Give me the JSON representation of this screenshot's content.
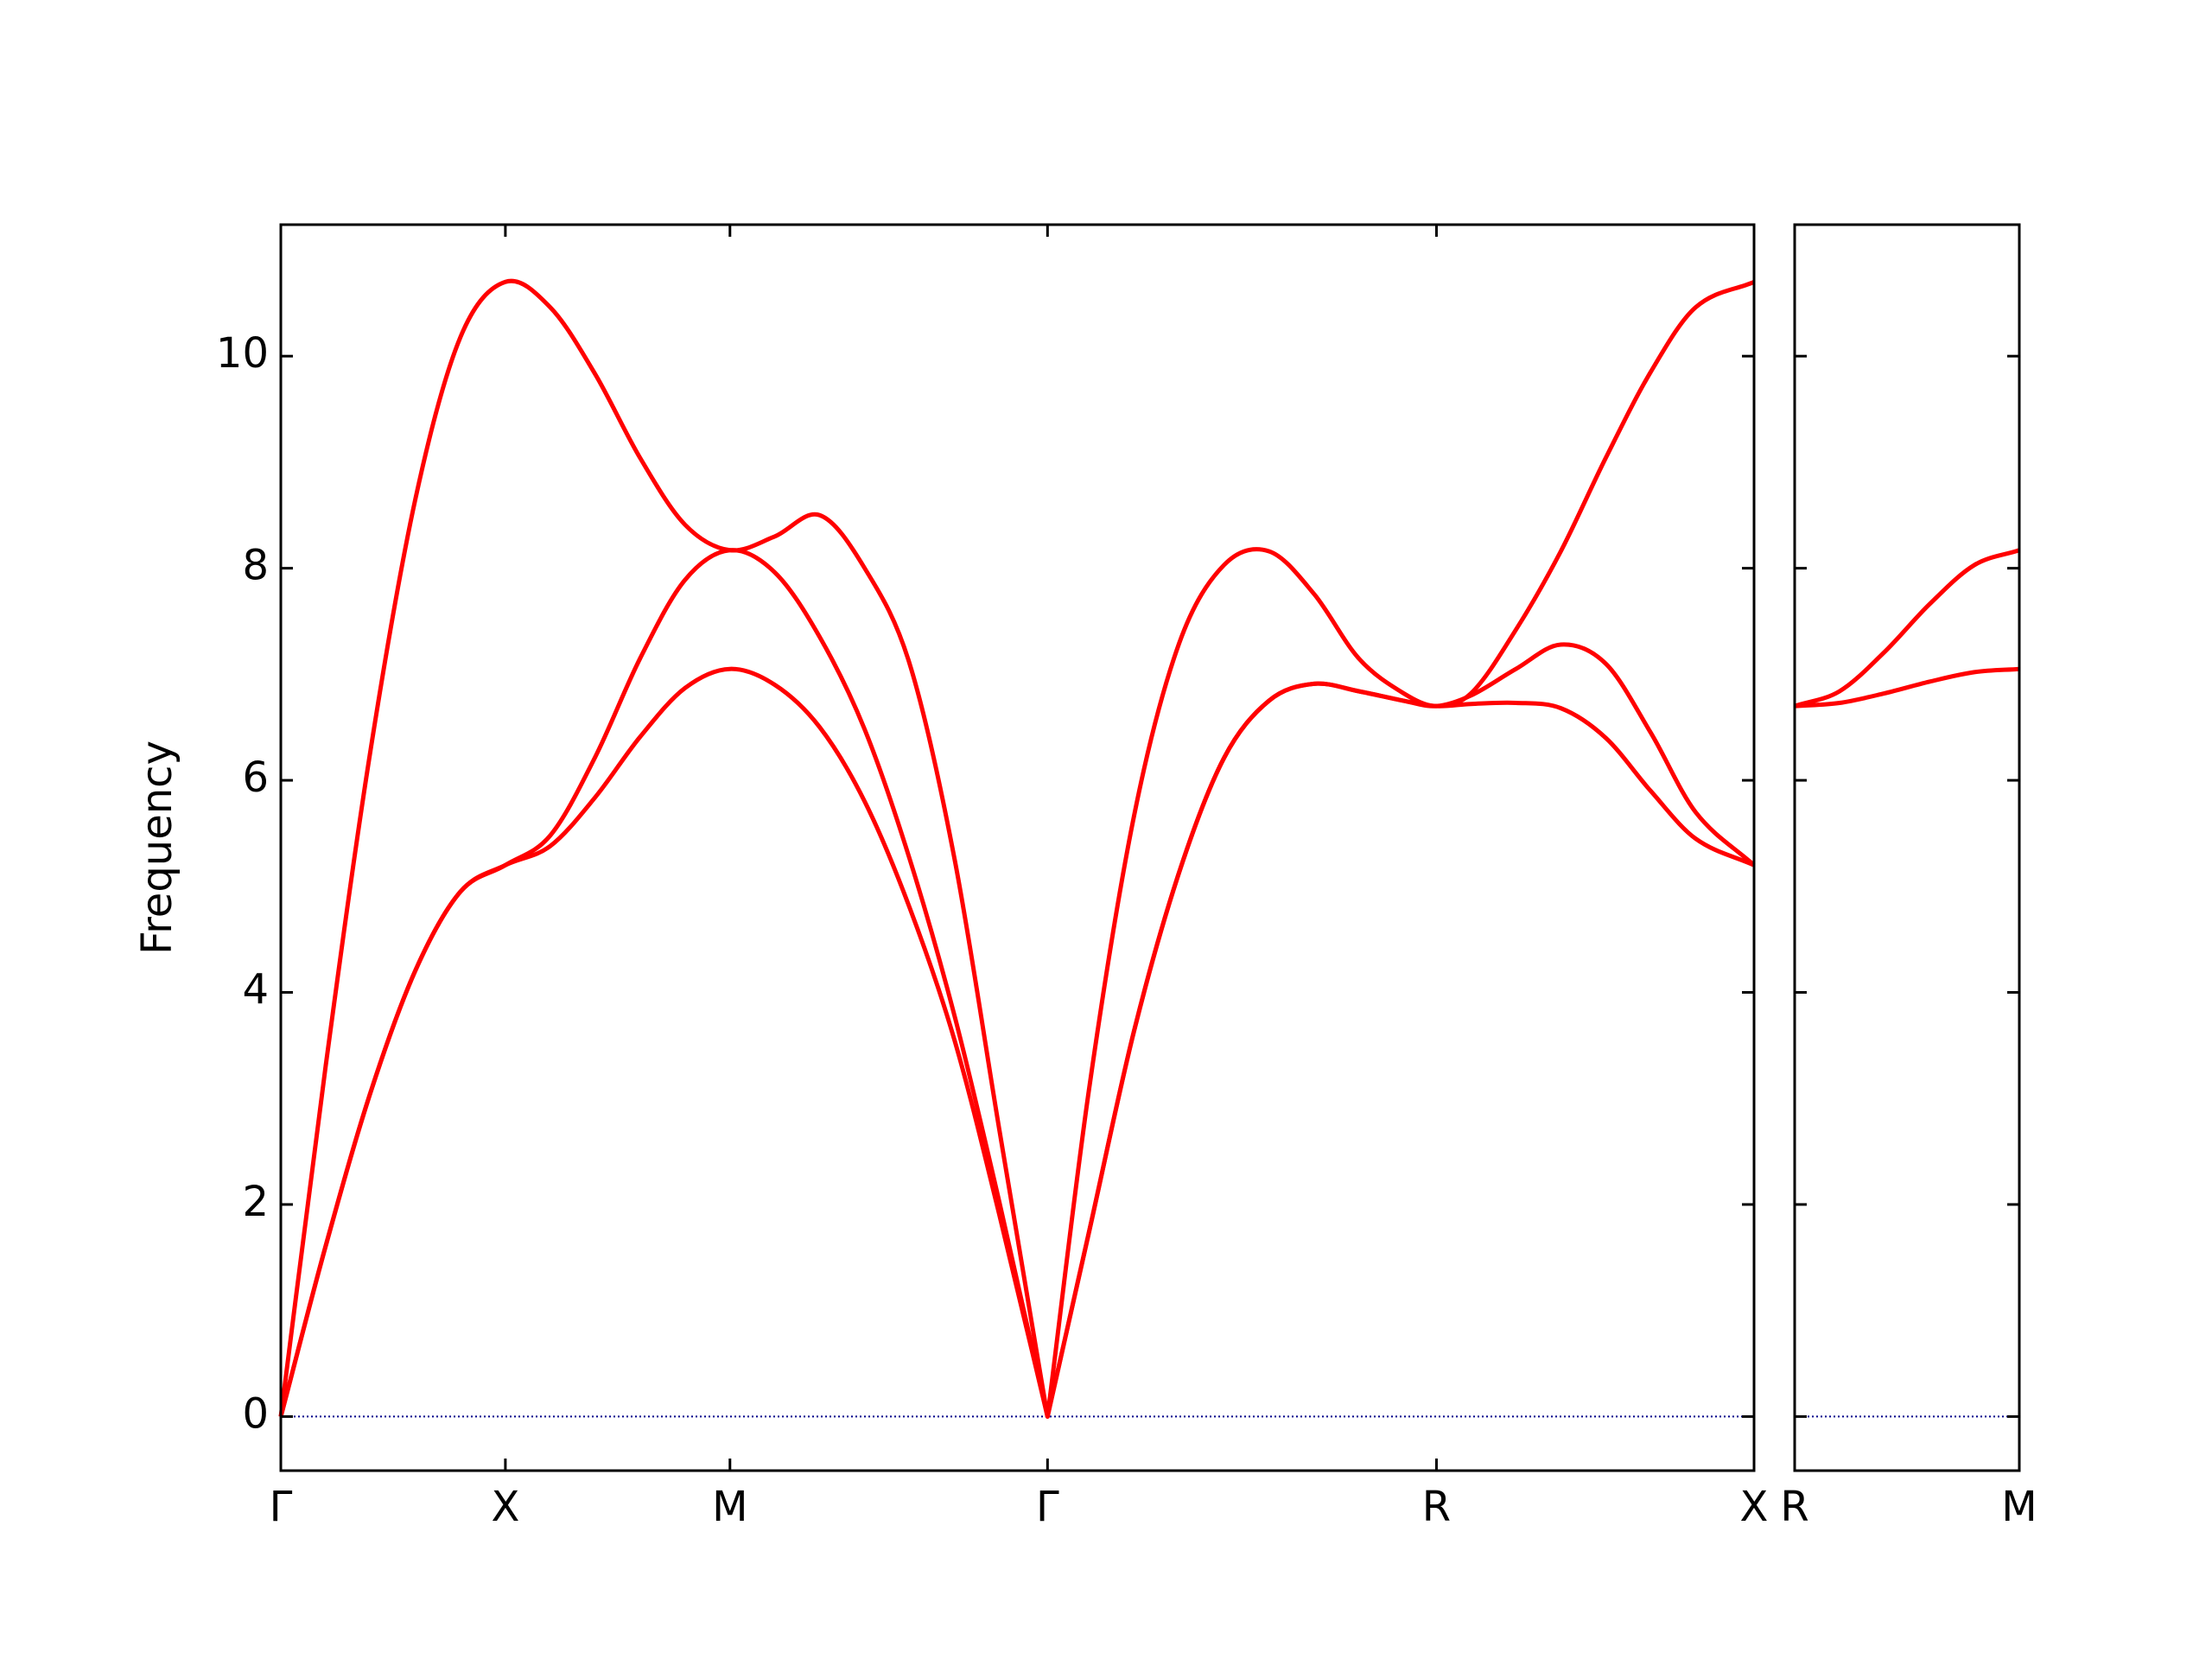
{
  "chart_data": [
    {
      "type": "line",
      "ylabel": "Frequency",
      "x": [
        0,
        0.1,
        0.2,
        0.3,
        0.4,
        0.5,
        0.6,
        0.7,
        0.8,
        0.9,
        1.0,
        1.1,
        1.2,
        1.3,
        1.4,
        1.5,
        1.6,
        1.7071,
        1.8,
        1.9,
        2.0,
        2.1,
        2.2,
        2.3,
        2.4,
        2.5,
        2.5731,
        2.65,
        2.75,
        2.85,
        2.95,
        3.05,
        3.15,
        3.2802
      ],
      "series": [
        {
          "color": "#ff0000",
          "values": [
            0,
            3.31,
            6.29,
            8.66,
            10.18,
            10.7,
            10.46,
            9.83,
            9.04,
            8.41,
            8.17,
            8.3,
            8.5,
            8.0,
            7.1,
            5.26,
            2.7,
            0,
            3.1,
            5.67,
            7.29,
            8.03,
            8.16,
            7.76,
            7.15,
            6.82,
            6.7,
            6.82,
            7.42,
            8.16,
            9.04,
            9.85,
            10.46,
            10.7
          ]
        },
        {
          "color": "#ff0000",
          "values": [
            0,
            1.61,
            3.06,
            4.21,
            4.95,
            5.2,
            5.48,
            6.22,
            7.15,
            7.89,
            8.17,
            7.96,
            7.35,
            6.48,
            5.26,
            3.78,
            2.02,
            0,
            1.75,
            3.64,
            5.13,
            6.21,
            6.75,
            6.91,
            6.84,
            6.75,
            6.7,
            6.8,
            7.05,
            7.28,
            7.1,
            6.45,
            5.7,
            5.2
          ]
        },
        {
          "color": "#ff0000",
          "values": [
            0,
            1.61,
            3.06,
            4.21,
            4.95,
            5.2,
            5.38,
            5.84,
            6.41,
            6.87,
            7.05,
            6.9,
            6.5,
            5.8,
            4.8,
            3.55,
            1.9,
            0,
            1.75,
            3.64,
            5.13,
            6.21,
            6.75,
            6.91,
            6.84,
            6.75,
            6.7,
            6.72,
            6.73,
            6.68,
            6.4,
            5.9,
            5.45,
            5.2
          ]
        }
      ],
      "xlim": [
        0,
        3.2802
      ],
      "xticks": [
        {
          "value": 0,
          "label": "Γ"
        },
        {
          "value": 0.5,
          "label": "X"
        },
        {
          "value": 1.0,
          "label": "M"
        },
        {
          "value": 1.7071,
          "label": "Γ"
        },
        {
          "value": 2.5731,
          "label": "R"
        },
        {
          "value": 3.2802,
          "label": "X"
        }
      ],
      "ylim": [
        -0.51,
        11.24
      ],
      "yticks": [
        0,
        2,
        4,
        6,
        8,
        10
      ],
      "ytick_labels": true,
      "hline": {
        "y": 0,
        "color": "#00008b"
      }
    },
    {
      "type": "line",
      "x": [
        0,
        0.1,
        0.2,
        0.3,
        0.4,
        0.5
      ],
      "series": [
        {
          "color": "#ff0000",
          "values": [
            6.7,
            6.84,
            7.21,
            7.66,
            8.03,
            8.17
          ]
        },
        {
          "color": "#ff0000",
          "values": [
            6.7,
            6.73,
            6.82,
            6.93,
            7.02,
            7.05
          ]
        }
      ],
      "xlim": [
        0,
        0.5
      ],
      "xticks": [
        {
          "value": 0,
          "label": "R"
        },
        {
          "value": 0.5,
          "label": "M"
        }
      ],
      "ylim": [
        -0.51,
        11.24
      ],
      "yticks": [
        0,
        2,
        4,
        6,
        8,
        10
      ],
      "ytick_labels": false,
      "hline": {
        "y": 0,
        "color": "#00008b"
      }
    }
  ]
}
